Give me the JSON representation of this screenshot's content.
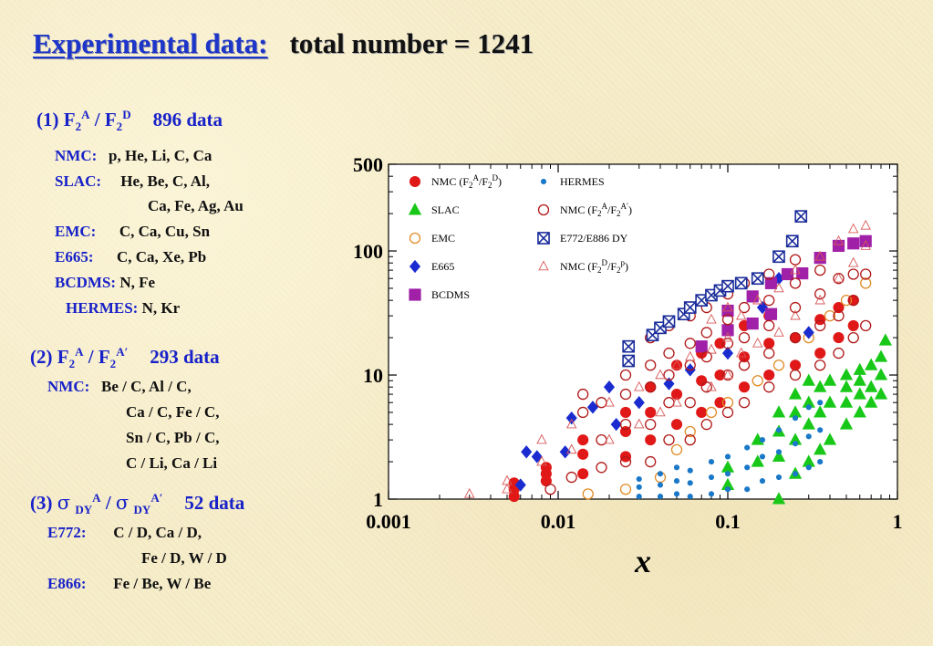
{
  "title": {
    "main": "Experimental data:",
    "total": "total number = 1241"
  },
  "sec1": {
    "label": "(1) F",
    "sup1": "A",
    "mid": " / F",
    "sup2": "D",
    "count": "896 data",
    "rows": [
      {
        "lab": "NMC:",
        "val": "p, He,  Li,  C,  Ca"
      },
      {
        "lab": "SLAC:",
        "val": "He,  Be,  C,  Al,"
      },
      {
        "lab": "",
        "val": "Ca,  Fe,  Ag,  Au"
      },
      {
        "lab": "EMC:",
        "val": "C,  Ca,  Cu,  Sn"
      },
      {
        "lab": "E665:",
        "val": "C,  Ca,  Xe,  Pb"
      },
      {
        "lab": "BCDMS:",
        "val": "N,  Fe"
      },
      {
        "lab": "HERMES:",
        "val": "N,  Kr"
      }
    ]
  },
  "sec2": {
    "label": "(2) F",
    "sup1": "A",
    "mid": " / F",
    "sup2": "A′",
    "count": "293 data",
    "rows": [
      {
        "lab": "NMC:",
        "val": "Be / C,  Al / C,"
      },
      {
        "lab": "",
        "val": "Ca / C, Fe / C,"
      },
      {
        "lab": "",
        "val": "Sn / C,  Pb / C,"
      },
      {
        "lab": "",
        "val": "C  / Li,  Ca / Li"
      }
    ]
  },
  "sec3": {
    "label": "(3) ",
    "sigma": "σ",
    "sub": "DY",
    "sup1": "A",
    "slash": " / ",
    "sup2": "A′",
    "count": "52 data",
    "rows": [
      {
        "lab": "E772:",
        "val": "C  / D,  Ca / D,"
      },
      {
        "lab": "",
        "val": "Fe / D,  W / D"
      },
      {
        "lab": "E866:",
        "val": "Fe / Be,  W / Be"
      }
    ]
  },
  "chart_data": {
    "type": "scatter",
    "xlabel": "x",
    "xscale": "log",
    "yscale": "log",
    "xlim": [
      0.001,
      1
    ],
    "ylim": [
      1,
      500
    ],
    "xticks": [
      "0.001",
      "0.01",
      "0.1",
      "1"
    ],
    "yticks": [
      "1",
      "10",
      "100",
      "500"
    ],
    "legend_position": "top-left",
    "series": [
      {
        "name": "NMC (F2A/F2D)",
        "label_main": "NMC (F",
        "sub": "2",
        "sup1": "A",
        "mid": "/F",
        "sup2": "D",
        "end": ")",
        "marker": "filled-circle",
        "color": "#e01818",
        "points": [
          [
            0.0055,
            1.05
          ],
          [
            0.0055,
            1.2
          ],
          [
            0.0055,
            1.35
          ],
          [
            0.0085,
            1.4
          ],
          [
            0.0085,
            1.6
          ],
          [
            0.0085,
            1.8
          ],
          [
            0.014,
            1.6
          ],
          [
            0.014,
            2.3
          ],
          [
            0.014,
            3.0
          ],
          [
            0.025,
            2.2
          ],
          [
            0.025,
            3.5
          ],
          [
            0.025,
            5
          ],
          [
            0.035,
            3
          ],
          [
            0.035,
            5
          ],
          [
            0.035,
            8
          ],
          [
            0.05,
            4
          ],
          [
            0.05,
            7
          ],
          [
            0.05,
            12
          ],
          [
            0.07,
            5
          ],
          [
            0.07,
            9
          ],
          [
            0.07,
            15
          ],
          [
            0.09,
            6
          ],
          [
            0.09,
            10
          ],
          [
            0.09,
            18
          ],
          [
            0.125,
            8
          ],
          [
            0.125,
            14
          ],
          [
            0.125,
            25
          ],
          [
            0.175,
            10
          ],
          [
            0.175,
            18
          ],
          [
            0.175,
            30
          ],
          [
            0.25,
            12
          ],
          [
            0.25,
            20
          ],
          [
            0.35,
            15
          ],
          [
            0.35,
            28
          ],
          [
            0.45,
            20
          ],
          [
            0.45,
            35
          ],
          [
            0.55,
            25
          ],
          [
            0.55,
            40
          ]
        ]
      },
      {
        "name": "SLAC",
        "marker": "filled-triangle",
        "color": "#18c818",
        "points": [
          [
            0.1,
            1.3
          ],
          [
            0.1,
            1.8
          ],
          [
            0.15,
            2.0
          ],
          [
            0.15,
            3.0
          ],
          [
            0.2,
            1.0
          ],
          [
            0.2,
            2.2
          ],
          [
            0.2,
            3.5
          ],
          [
            0.2,
            5.0
          ],
          [
            0.25,
            1.6
          ],
          [
            0.25,
            3
          ],
          [
            0.25,
            5
          ],
          [
            0.25,
            7
          ],
          [
            0.3,
            2
          ],
          [
            0.3,
            4
          ],
          [
            0.3,
            6
          ],
          [
            0.3,
            9
          ],
          [
            0.35,
            2.5
          ],
          [
            0.35,
            5
          ],
          [
            0.35,
            8
          ],
          [
            0.4,
            3
          ],
          [
            0.4,
            6
          ],
          [
            0.4,
            9
          ],
          [
            0.5,
            4
          ],
          [
            0.5,
            6
          ],
          [
            0.5,
            8
          ],
          [
            0.5,
            10
          ],
          [
            0.6,
            5
          ],
          [
            0.6,
            7
          ],
          [
            0.6,
            9
          ],
          [
            0.6,
            11
          ],
          [
            0.7,
            6
          ],
          [
            0.7,
            8
          ],
          [
            0.7,
            12
          ],
          [
            0.8,
            7
          ],
          [
            0.8,
            10
          ],
          [
            0.8,
            14
          ],
          [
            0.85,
            19
          ]
        ]
      },
      {
        "name": "EMC",
        "marker": "open-circle",
        "color": "#e08c28",
        "points": [
          [
            0.015,
            1.1
          ],
          [
            0.025,
            1.2
          ],
          [
            0.04,
            1.5
          ],
          [
            0.05,
            2.5
          ],
          [
            0.06,
            3.5
          ],
          [
            0.08,
            5
          ],
          [
            0.1,
            6
          ],
          [
            0.15,
            9
          ],
          [
            0.2,
            12
          ],
          [
            0.3,
            20
          ],
          [
            0.4,
            30
          ],
          [
            0.5,
            40
          ],
          [
            0.65,
            55
          ]
        ]
      },
      {
        "name": "E665",
        "marker": "filled-diamond",
        "color": "#1a2cd0",
        "points": [
          [
            0.006,
            1.3
          ],
          [
            0.0065,
            2.4
          ],
          [
            0.0075,
            2.2
          ],
          [
            0.011,
            2.4
          ],
          [
            0.012,
            4.5
          ],
          [
            0.016,
            5.5
          ],
          [
            0.02,
            8
          ],
          [
            0.022,
            4
          ],
          [
            0.03,
            6
          ],
          [
            0.045,
            8.5
          ],
          [
            0.06,
            11
          ],
          [
            0.1,
            15
          ],
          [
            0.16,
            35
          ],
          [
            0.2,
            60
          ],
          [
            0.3,
            22
          ]
        ]
      },
      {
        "name": "BCDMS",
        "marker": "filled-square",
        "color": "#a020a8",
        "points": [
          [
            0.07,
            17
          ],
          [
            0.1,
            23
          ],
          [
            0.1,
            33
          ],
          [
            0.14,
            26
          ],
          [
            0.14,
            43
          ],
          [
            0.18,
            31
          ],
          [
            0.18,
            55
          ],
          [
            0.225,
            65
          ],
          [
            0.275,
            66
          ],
          [
            0.35,
            88
          ],
          [
            0.45,
            110
          ],
          [
            0.55,
            115
          ],
          [
            0.65,
            120
          ]
        ]
      },
      {
        "name": "HERMES",
        "marker": "small-dot",
        "color": "#1a78c8",
        "points": [
          [
            0.03,
            1.05
          ],
          [
            0.03,
            1.25
          ],
          [
            0.03,
            1.45
          ],
          [
            0.04,
            1.05
          ],
          [
            0.04,
            1.3
          ],
          [
            0.04,
            1.6
          ],
          [
            0.05,
            1.1
          ],
          [
            0.05,
            1.4
          ],
          [
            0.05,
            1.8
          ],
          [
            0.06,
            1.05
          ],
          [
            0.06,
            1.35
          ],
          [
            0.06,
            1.7
          ],
          [
            0.08,
            1.1
          ],
          [
            0.08,
            1.5
          ],
          [
            0.08,
            2.0
          ],
          [
            0.1,
            1.2
          ],
          [
            0.1,
            1.6
          ],
          [
            0.1,
            2.2
          ],
          [
            0.13,
            1.2
          ],
          [
            0.13,
            1.8
          ],
          [
            0.13,
            2.6
          ],
          [
            0.16,
            1.4
          ],
          [
            0.16,
            2.2
          ],
          [
            0.16,
            3.0
          ],
          [
            0.2,
            1.5
          ],
          [
            0.2,
            2.4
          ],
          [
            0.2,
            3.6
          ],
          [
            0.25,
            1.6
          ],
          [
            0.25,
            2.8
          ],
          [
            0.25,
            4.5
          ],
          [
            0.3,
            1.8
          ],
          [
            0.3,
            3.2
          ],
          [
            0.3,
            5.5
          ],
          [
            0.35,
            2.0
          ],
          [
            0.35,
            3.6
          ],
          [
            0.35,
            6.0
          ]
        ]
      },
      {
        "name": "NMC (F2A/F2A')",
        "label_main": "NMC (F",
        "sub": "2",
        "sup1": "A",
        "mid": "/F",
        "sup2": "A′",
        "end": ")",
        "marker": "open-circle",
        "color": "#b01818",
        "points": [
          [
            0.009,
            1.2
          ],
          [
            0.012,
            1.5
          ],
          [
            0.014,
            5
          ],
          [
            0.014,
            7
          ],
          [
            0.018,
            1.8
          ],
          [
            0.018,
            3
          ],
          [
            0.018,
            6
          ],
          [
            0.025,
            2
          ],
          [
            0.025,
            4
          ],
          [
            0.025,
            7
          ],
          [
            0.025,
            10
          ],
          [
            0.035,
            2
          ],
          [
            0.035,
            4
          ],
          [
            0.035,
            8
          ],
          [
            0.035,
            12
          ],
          [
            0.035,
            20
          ],
          [
            0.045,
            3
          ],
          [
            0.045,
            6
          ],
          [
            0.045,
            10
          ],
          [
            0.045,
            15
          ],
          [
            0.045,
            25
          ],
          [
            0.06,
            3
          ],
          [
            0.06,
            6
          ],
          [
            0.06,
            12
          ],
          [
            0.06,
            18
          ],
          [
            0.06,
            30
          ],
          [
            0.075,
            4
          ],
          [
            0.075,
            8
          ],
          [
            0.075,
            14
          ],
          [
            0.075,
            22
          ],
          [
            0.075,
            35
          ],
          [
            0.1,
            5
          ],
          [
            0.1,
            10
          ],
          [
            0.1,
            18
          ],
          [
            0.1,
            28
          ],
          [
            0.1,
            45
          ],
          [
            0.125,
            6
          ],
          [
            0.125,
            12
          ],
          [
            0.125,
            20
          ],
          [
            0.125,
            35
          ],
          [
            0.125,
            55
          ],
          [
            0.175,
            8
          ],
          [
            0.175,
            15
          ],
          [
            0.175,
            25
          ],
          [
            0.175,
            40
          ],
          [
            0.175,
            65
          ],
          [
            0.25,
            10
          ],
          [
            0.25,
            20
          ],
          [
            0.25,
            35
          ],
          [
            0.25,
            55
          ],
          [
            0.25,
            85
          ],
          [
            0.35,
            12
          ],
          [
            0.35,
            25
          ],
          [
            0.35,
            45
          ],
          [
            0.35,
            70
          ],
          [
            0.45,
            15
          ],
          [
            0.45,
            30
          ],
          [
            0.45,
            60
          ],
          [
            0.55,
            20
          ],
          [
            0.55,
            40
          ],
          [
            0.55,
            65
          ],
          [
            0.65,
            25
          ],
          [
            0.65,
            65
          ]
        ]
      },
      {
        "name": "E772/E886 DY",
        "marker": "boxed-x",
        "color": "#1a2c9a",
        "points": [
          [
            0.026,
            13
          ],
          [
            0.026,
            17
          ],
          [
            0.036,
            21
          ],
          [
            0.04,
            24
          ],
          [
            0.045,
            27
          ],
          [
            0.055,
            31
          ],
          [
            0.06,
            35
          ],
          [
            0.07,
            40
          ],
          [
            0.08,
            44
          ],
          [
            0.09,
            48
          ],
          [
            0.1,
            52
          ],
          [
            0.12,
            55
          ],
          [
            0.15,
            60
          ],
          [
            0.2,
            90
          ],
          [
            0.24,
            120
          ],
          [
            0.27,
            190
          ]
        ]
      },
      {
        "name": "NMC (F2D/F2P)",
        "label_main": "NMC (F",
        "sub": "2",
        "sup1": "D",
        "mid": "/F",
        "sup2": "p",
        "end": ")",
        "marker": "open-triangle",
        "color": "#d85858",
        "points": [
          [
            0.003,
            1.1
          ],
          [
            0.005,
            1.2
          ],
          [
            0.005,
            1.4
          ],
          [
            0.008,
            2
          ],
          [
            0.008,
            3
          ],
          [
            0.012,
            2.5
          ],
          [
            0.012,
            4
          ],
          [
            0.02,
            3
          ],
          [
            0.02,
            6
          ],
          [
            0.03,
            4
          ],
          [
            0.03,
            8
          ],
          [
            0.04,
            5
          ],
          [
            0.04,
            10
          ],
          [
            0.05,
            6
          ],
          [
            0.05,
            12
          ],
          [
            0.06,
            14
          ],
          [
            0.08,
            8
          ],
          [
            0.08,
            16
          ],
          [
            0.08,
            28
          ],
          [
            0.1,
            10
          ],
          [
            0.1,
            20
          ],
          [
            0.1,
            35
          ],
          [
            0.12,
            15
          ],
          [
            0.12,
            30
          ],
          [
            0.15,
            18
          ],
          [
            0.15,
            40
          ],
          [
            0.2,
            22
          ],
          [
            0.2,
            50
          ],
          [
            0.25,
            30
          ],
          [
            0.25,
            70
          ],
          [
            0.35,
            40
          ],
          [
            0.35,
            90
          ],
          [
            0.45,
            60
          ],
          [
            0.45,
            120
          ],
          [
            0.55,
            80
          ],
          [
            0.55,
            150
          ],
          [
            0.65,
            110
          ],
          [
            0.65,
            160
          ]
        ]
      }
    ]
  }
}
